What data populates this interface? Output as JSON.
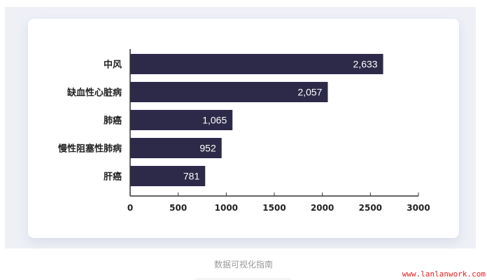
{
  "chart_data": {
    "type": "bar",
    "orientation": "horizontal",
    "categories": [
      "中风",
      "缺血性心脏病",
      "肺癌",
      "慢性阻塞性肺病",
      "肝癌"
    ],
    "values": [
      2633,
      2057,
      1065,
      952,
      781
    ],
    "value_labels": [
      "2,633",
      "2,057",
      "1,065",
      "952",
      "781"
    ],
    "xlim": [
      0,
      3000
    ],
    "xticks": [
      0,
      500,
      1000,
      1500,
      2000,
      2500,
      3000
    ],
    "grid": false,
    "bar_color": "#2c2a48"
  },
  "caption": "数据可视化指南",
  "watermark": "www.lanlanwork.com"
}
